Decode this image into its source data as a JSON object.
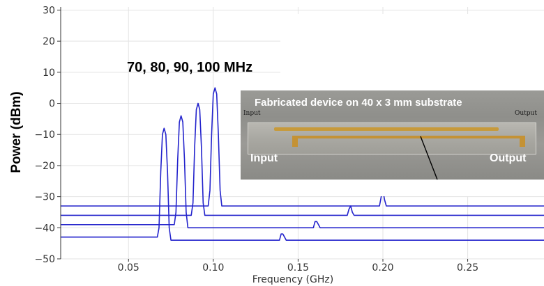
{
  "chart_data": {
    "type": "line",
    "xlabel": "Frequency (GHz)",
    "ylabel": "Power (dBm)",
    "xlim": [
      0.01,
      0.295
    ],
    "ylim": [
      -50,
      31
    ],
    "x_ticks": [
      0.05,
      0.1,
      0.15,
      0.2,
      0.25
    ],
    "x_tick_labels": [
      "0.05",
      "0.10",
      "0.15",
      "0.20",
      "0.25"
    ],
    "y_ticks": [
      30,
      20,
      10,
      0,
      -10,
      -20,
      -30,
      -40,
      -50
    ],
    "y_tick_labels": [
      "30",
      "20",
      "10",
      "0",
      "−10",
      "−20",
      "−30",
      "−40",
      "−50"
    ],
    "grid": true,
    "series_color": "#2323cc",
    "series": [
      {
        "x": [
          0.01,
          0.067,
          0.068,
          0.069,
          0.07,
          0.071,
          0.072,
          0.073,
          0.074,
          0.075,
          0.076,
          0.077,
          0.139,
          0.14,
          0.141,
          0.142,
          0.143,
          0.295
        ],
        "y": [
          -43,
          -43,
          -40,
          -22,
          -10,
          -8,
          -10,
          -22,
          -40,
          -44,
          -44,
          -44,
          -44,
          -42,
          -42,
          -43,
          -44,
          -44
        ]
      },
      {
        "x": [
          0.01,
          0.077,
          0.078,
          0.079,
          0.08,
          0.081,
          0.082,
          0.083,
          0.084,
          0.085,
          0.086,
          0.087,
          0.159,
          0.16,
          0.161,
          0.162,
          0.163,
          0.295
        ],
        "y": [
          -39,
          -39,
          -35,
          -18,
          -6,
          -4,
          -6,
          -18,
          -35,
          -40,
          -40,
          -40,
          -40,
          -38,
          -38,
          -39,
          -40,
          -40
        ]
      },
      {
        "x": [
          0.01,
          0.087,
          0.088,
          0.089,
          0.09,
          0.091,
          0.092,
          0.093,
          0.094,
          0.095,
          0.096,
          0.097,
          0.179,
          0.18,
          0.181,
          0.182,
          0.183,
          0.295
        ],
        "y": [
          -36,
          -36,
          -32,
          -14,
          -2,
          0,
          -2,
          -14,
          -32,
          -36,
          -36,
          -36,
          -36,
          -34,
          -33,
          -35,
          -36,
          -36
        ]
      },
      {
        "x": [
          0.01,
          0.097,
          0.098,
          0.099,
          0.1,
          0.101,
          0.102,
          0.103,
          0.104,
          0.105,
          0.106,
          0.107,
          0.198,
          0.199,
          0.2,
          0.201,
          0.202,
          0.295
        ],
        "y": [
          -33,
          -33,
          -28,
          -10,
          3,
          5,
          3,
          -10,
          -28,
          -33,
          -33,
          -33,
          -33,
          -30,
          -28,
          -31,
          -33,
          -33
        ]
      }
    ],
    "annotations": {
      "frequencies": "70, 80, 90, 100 MHz"
    }
  },
  "inset": {
    "title": "Fabricated device on 40 x 3 mm substrate",
    "input_small": "Input",
    "output_small": "Output",
    "input_big": "Input",
    "output_big": "Output"
  }
}
